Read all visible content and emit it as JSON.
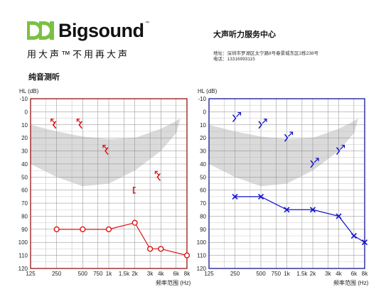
{
  "header": {
    "brand_name": "Bigsound",
    "trademark": "™",
    "slogan": "用大声™不用再大声",
    "center_name": "大声听力服务中心",
    "address": "地址：深圳市罗湖区太宁路8号春景城东区2栋238号",
    "phone": "电话：13316993115",
    "section_title": "纯音测听"
  },
  "colors": {
    "right_ear": "#dd1111",
    "left_ear": "#1111cc",
    "right_frame": "#8b0000",
    "left_frame": "#00008b",
    "banana": "#d4d4d4",
    "logo_green": "#7ac143"
  },
  "chart_data": [
    {
      "type": "line",
      "ear": "right",
      "ylabel": "HL (dB)",
      "xlabel": "频率范围 (Hz)",
      "x_ticks": [
        "125",
        "250",
        "500",
        "750",
        "1k",
        "1.5k",
        "2k",
        "3k",
        "4k",
        "6k",
        "8k"
      ],
      "y_ticks": [
        "-10",
        "0",
        "10",
        "20",
        "30",
        "40",
        "50",
        "60",
        "70",
        "80",
        "90",
        "100",
        "110",
        "120"
      ],
      "ylim": [
        -10,
        120
      ],
      "grid": true,
      "series": [
        {
          "symbol": "circle",
          "points": [
            {
              "x": "250",
              "y": 90
            },
            {
              "x": "500",
              "y": 90
            },
            {
              "x": "1k",
              "y": 90
            },
            {
              "x": "2k",
              "y": 85
            },
            {
              "x": "3k",
              "y": 105
            },
            {
              "x": "4k",
              "y": 105
            },
            {
              "x": "8k",
              "y": 110
            }
          ]
        },
        {
          "symbol": "bone-arrow-left",
          "points": [
            {
              "x": "250",
              "y": 10
            },
            {
              "x": "500",
              "y": 10
            },
            {
              "x": "1k",
              "y": 30
            },
            {
              "x": "4k",
              "y": 50
            }
          ]
        },
        {
          "symbol": "bone-bracket-left",
          "points": [
            {
              "x": "2k",
              "y": 60
            }
          ]
        }
      ]
    },
    {
      "type": "line",
      "ear": "left",
      "ylabel": "HL (dB)",
      "xlabel": "频率范围 (Hz)",
      "x_ticks": [
        "125",
        "250",
        "500",
        "750",
        "1k",
        "1.5k",
        "2k",
        "3k",
        "4k",
        "6k",
        "8k"
      ],
      "y_ticks": [
        "-10",
        "0",
        "10",
        "20",
        "30",
        "40",
        "50",
        "60",
        "70",
        "80",
        "90",
        "100",
        "110",
        "120"
      ],
      "ylim": [
        -10,
        120
      ],
      "grid": true,
      "series": [
        {
          "symbol": "cross",
          "points": [
            {
              "x": "250",
              "y": 65
            },
            {
              "x": "500",
              "y": 65
            },
            {
              "x": "1k",
              "y": 75
            },
            {
              "x": "2k",
              "y": 75
            },
            {
              "x": "4k",
              "y": 80
            },
            {
              "x": "6k",
              "y": 95
            },
            {
              "x": "8k",
              "y": 100
            }
          ]
        },
        {
          "symbol": "bone-arrow-right",
          "points": [
            {
              "x": "250",
              "y": 5
            },
            {
              "x": "500",
              "y": 10
            },
            {
              "x": "1k",
              "y": 20
            },
            {
              "x": "2k",
              "y": 40
            },
            {
              "x": "4k",
              "y": 30
            }
          ]
        }
      ]
    }
  ]
}
